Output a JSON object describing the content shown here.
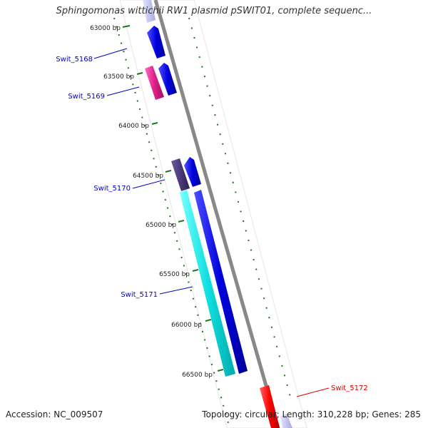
{
  "title": "Sphingomonas wittichii RW1 plasmid pSWIT01, complete sequenc...",
  "accession": "Accession: NC_009507",
  "summary": "Topology: circular; Length: 310,228 bp; Genes: 285",
  "ticks": [
    "63000 bp",
    "63500 bp",
    "64000 bp",
    "64500 bp",
    "65000 bp",
    "65500 bp",
    "66000 bp",
    "66500 bp"
  ],
  "genes": [
    {
      "label": "Swit_5168",
      "color": "#0000cc"
    },
    {
      "label": "Swit_5169",
      "color": "#0000cc"
    },
    {
      "label": "Swit_5170",
      "color": "#0000cc"
    },
    {
      "label": "Swit_5171",
      "color": "#0000cc"
    },
    {
      "label": "Swit_5172",
      "color": "#dd0000"
    }
  ],
  "colors": {
    "backbone": "#888888",
    "ruler": "#1a7a1a",
    "forward_blue": "#0a0ae0",
    "magenta": "#e0208a",
    "cyan": "#10e0e0",
    "dark_purple": "#4a3a7a",
    "red": "#ff0000",
    "pale_lavender": "#c8c8f0"
  }
}
